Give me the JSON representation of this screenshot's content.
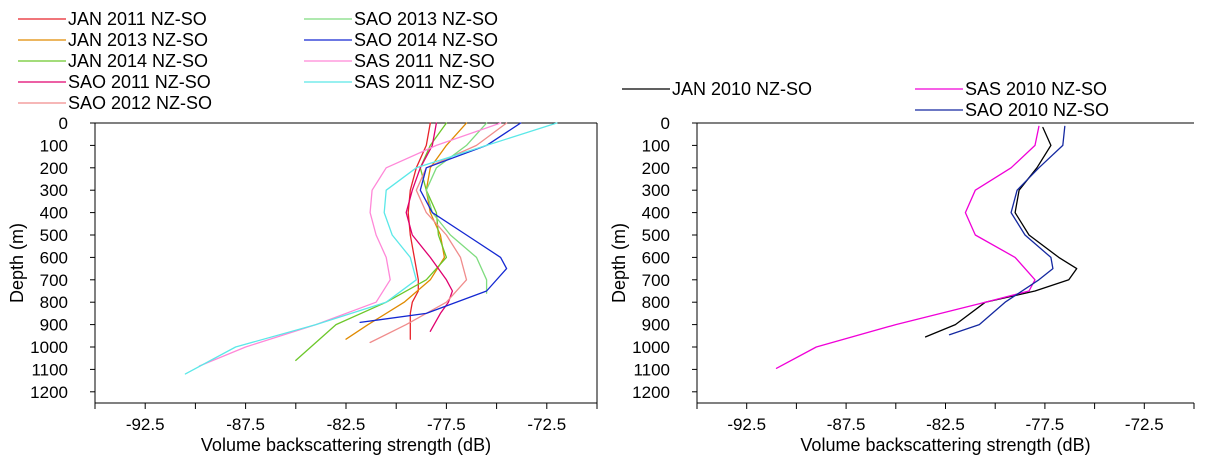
{
  "chart_data": [
    {
      "type": "line",
      "xlabel": "Volume backscattering strength (dB)",
      "ylabel": "Depth (m)",
      "xlim": [
        -95,
        -70
      ],
      "ylim": [
        1250,
        0
      ],
      "xticks": [
        -92.5,
        -87.5,
        -82.5,
        -77.5,
        -72.5
      ],
      "xtick_labels": [
        "-92.5",
        "-87.5",
        "-82.5",
        "-77.5",
        "-72.5"
      ],
      "yticks": [
        0,
        100,
        200,
        300,
        400,
        500,
        600,
        700,
        800,
        900,
        1000,
        1100,
        1200
      ],
      "ytick_labels": [
        "0",
        "100",
        "200",
        "300",
        "400",
        "500",
        "600",
        "700",
        "800",
        "900",
        "1000",
        "1100",
        "1200"
      ],
      "grid": false,
      "legend_position": "top-left",
      "series": [
        {
          "name": "JAN 2011 NZ-SO",
          "color": "#e8232a",
          "x": [
            -78.3,
            -78.5,
            -79.0,
            -79.3,
            -79.4,
            -79.3,
            -79.1,
            -78.9,
            -78.9,
            -79.2,
            -79.3,
            -79.3,
            -79.3
          ],
          "y": [
            0,
            100,
            200,
            300,
            400,
            500,
            600,
            700,
            750,
            800,
            850,
            900,
            965
          ]
        },
        {
          "name": "JAN 2013 NZ-SO",
          "color": "#e08a00",
          "x": [
            -76.5,
            -77.5,
            -78.3,
            -78.5,
            -78.3,
            -77.8,
            -77.6,
            -78.3,
            -79.6,
            -81.4,
            -82.5
          ],
          "y": [
            0,
            100,
            200,
            300,
            400,
            500,
            600,
            700,
            800,
            900,
            965
          ]
        },
        {
          "name": "JAN 2014 NZ-SO",
          "color": "#6cc72a",
          "x": [
            -77.5,
            -78.3,
            -78.8,
            -78.5,
            -78.0,
            -77.9,
            -77.5,
            -78.5,
            -80.5,
            -83.0,
            -85.0
          ],
          "y": [
            0,
            100,
            200,
            300,
            400,
            500,
            600,
            700,
            800,
            900,
            1060
          ]
        },
        {
          "name": "SAO 2011 NZ-SO",
          "color": "#e0006e",
          "x": [
            -78.0,
            -78.2,
            -78.8,
            -79.2,
            -79.5,
            -79.2,
            -78.3,
            -77.5,
            -77.2,
            -77.4,
            -77.8,
            -78.3
          ],
          "y": [
            0,
            100,
            200,
            300,
            400,
            500,
            600,
            700,
            750,
            800,
            850,
            930
          ]
        },
        {
          "name": "SAO 2012 NZ-SO",
          "color": "#f08c8c",
          "x": [
            -74.5,
            -76.0,
            -78.5,
            -79.0,
            -78.5,
            -77.5,
            -76.8,
            -76.5,
            -77.5,
            -79.5,
            -81.3
          ],
          "y": [
            0,
            100,
            200,
            300,
            400,
            500,
            600,
            700,
            800,
            900,
            980
          ]
        },
        {
          "name": "SAO 2013 NZ-SO",
          "color": "#7fdc7f",
          "x": [
            -75.5,
            -76.5,
            -78.0,
            -78.5,
            -78.2,
            -77.3,
            -76.0,
            -75.5,
            -75.5
          ],
          "y": [
            0,
            100,
            200,
            300,
            400,
            500,
            600,
            700,
            760
          ]
        },
        {
          "name": "SAO 2014 NZ-SO",
          "color": "#1428d2",
          "x": [
            -73.8,
            -75.5,
            -78.5,
            -78.8,
            -78.2,
            -76.5,
            -74.8,
            -74.5,
            -75.5,
            -78.5,
            -81.8
          ],
          "y": [
            0,
            100,
            200,
            300,
            400,
            500,
            600,
            650,
            750,
            850,
            890
          ]
        },
        {
          "name": "SAS 2011 NZ-SO",
          "color": "#ff88d8",
          "x": [
            -74.8,
            -78.0,
            -80.5,
            -81.2,
            -81.3,
            -81.0,
            -80.5,
            -80.3,
            -81.0,
            -84.0,
            -87.5,
            -89.8
          ],
          "y": [
            0,
            100,
            200,
            300,
            400,
            500,
            600,
            700,
            800,
            900,
            1000,
            1085
          ]
        },
        {
          "name": "SAS 2011 NZ-SO",
          "color": "#5be8e8",
          "x": [
            -72.0,
            -75.5,
            -79.0,
            -80.5,
            -80.6,
            -80.2,
            -79.3,
            -79.0,
            -80.5,
            -84.0,
            -88.0,
            -90.5
          ],
          "y": [
            0,
            100,
            200,
            300,
            400,
            500,
            600,
            700,
            800,
            900,
            1000,
            1120
          ]
        }
      ]
    },
    {
      "type": "line",
      "xlabel": "Volume backscattering strength (dB)",
      "ylabel": "Depth (m)",
      "xlim": [
        -95,
        -70
      ],
      "ylim": [
        1250,
        0
      ],
      "xticks": [
        -92.5,
        -87.5,
        -82.5,
        -77.5,
        -72.5
      ],
      "xtick_labels": [
        "-92.5",
        "-87.5",
        "-82.5",
        "-77.5",
        "-72.5"
      ],
      "yticks": [
        0,
        100,
        200,
        300,
        400,
        500,
        600,
        700,
        800,
        900,
        1000,
        1100,
        1200
      ],
      "ytick_labels": [
        "0",
        "100",
        "200",
        "300",
        "400",
        "500",
        "600",
        "700",
        "800",
        "900",
        "1000",
        "1100",
        "1200"
      ],
      "grid": false,
      "legend_position": "top",
      "series": [
        {
          "name": "JAN 2010 NZ-SO",
          "color": "#000000",
          "x": [
            -77.6,
            -77.2,
            -77.9,
            -78.8,
            -79.0,
            -78.3,
            -76.8,
            -75.9,
            -76.3,
            -78.0,
            -80.5,
            -82.0,
            -83.5
          ],
          "y": [
            20,
            100,
            200,
            300,
            400,
            500,
            600,
            650,
            700,
            750,
            800,
            900,
            955
          ]
        },
        {
          "name": "SAS 2010 NZ-SO",
          "color": "#f000d8",
          "x": [
            -77.8,
            -78.0,
            -79.2,
            -81.0,
            -81.5,
            -81.0,
            -79.0,
            -78.0,
            -78.3,
            -80.5,
            -85.0,
            -89.0,
            -91.0
          ],
          "y": [
            15,
            100,
            200,
            300,
            400,
            500,
            600,
            700,
            750,
            800,
            900,
            1000,
            1095
          ]
        },
        {
          "name": "SAO 2010 NZ-SO",
          "color": "#1428a0",
          "x": [
            -76.5,
            -76.6,
            -77.8,
            -78.9,
            -79.2,
            -78.5,
            -77.2,
            -77.1,
            -77.8,
            -79.5,
            -80.8,
            -82.3
          ],
          "y": [
            15,
            100,
            200,
            300,
            400,
            500,
            600,
            650,
            700,
            800,
            900,
            945
          ]
        }
      ]
    }
  ]
}
